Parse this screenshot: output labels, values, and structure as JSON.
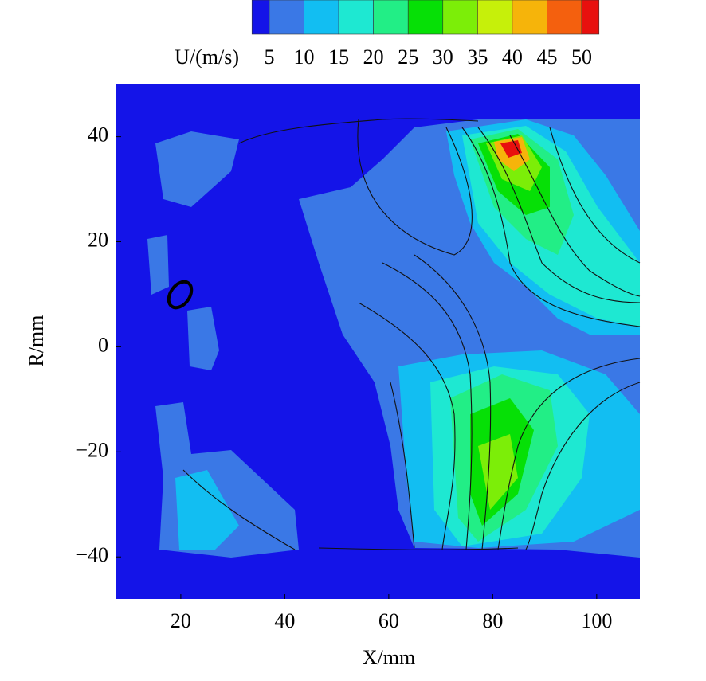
{
  "chart_data": {
    "type": "contour",
    "xlabel": "X/mm",
    "ylabel": "R/mm",
    "xlim": [
      7.6,
      108.3
    ],
    "ylim": [
      -48,
      50.1
    ],
    "xticks": [
      20,
      40,
      60,
      80,
      100
    ],
    "yticks": [
      {
        "value": -40,
        "label": "−40"
      },
      {
        "value": -20,
        "label": "−20"
      },
      0,
      20,
      40
    ],
    "colorbar": {
      "label": "U/(m/s)",
      "ticks": [
        5,
        10,
        15,
        20,
        25,
        30,
        35,
        40,
        45,
        50
      ],
      "colors": [
        "#1414e8",
        "#3a78e6",
        "#12bef2",
        "#1ee8d2",
        "#22ee86",
        "#06e006",
        "#7cee08",
        "#c6f00a",
        "#f6b40a",
        "#f4600e",
        "#e8100e"
      ]
    }
  }
}
